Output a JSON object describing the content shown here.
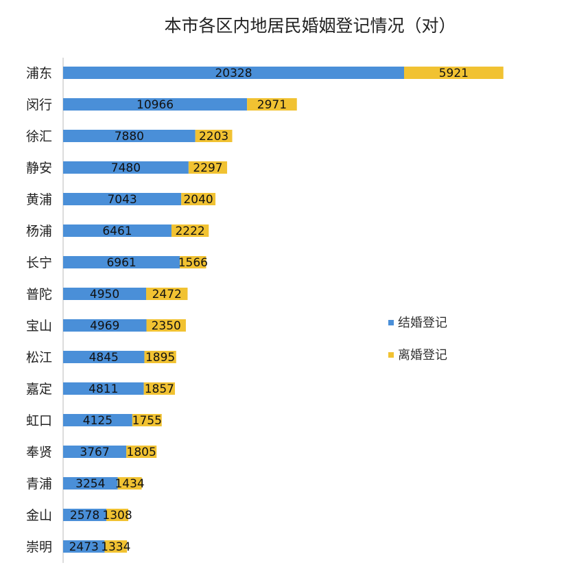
{
  "chart_data": {
    "type": "bar",
    "orientation": "horizontal",
    "stacked": true,
    "title": "本市各区内地居民婚姻登记情况（对）",
    "categories": [
      "浦东",
      "闵行",
      "徐汇",
      "静安",
      "黄浦",
      "杨浦",
      "长宁",
      "普陀",
      "宝山",
      "松江",
      "嘉定",
      "虹口",
      "奉贤",
      "青浦",
      "金山",
      "崇明"
    ],
    "series": [
      {
        "name": "结婚登记",
        "color": "#4a8fd8",
        "values": [
          20328,
          10966,
          7880,
          7480,
          7043,
          6461,
          6961,
          4950,
          4969,
          4845,
          4811,
          4125,
          3767,
          3254,
          2578,
          2473
        ]
      },
      {
        "name": "离婚登记",
        "color": "#f1c232",
        "values": [
          5921,
          2971,
          2203,
          2297,
          2040,
          2222,
          1566,
          2472,
          2350,
          1895,
          1857,
          1755,
          1805,
          1434,
          1308,
          1334
        ]
      }
    ],
    "data_labels": true,
    "grid": false,
    "legend_position": "right"
  }
}
